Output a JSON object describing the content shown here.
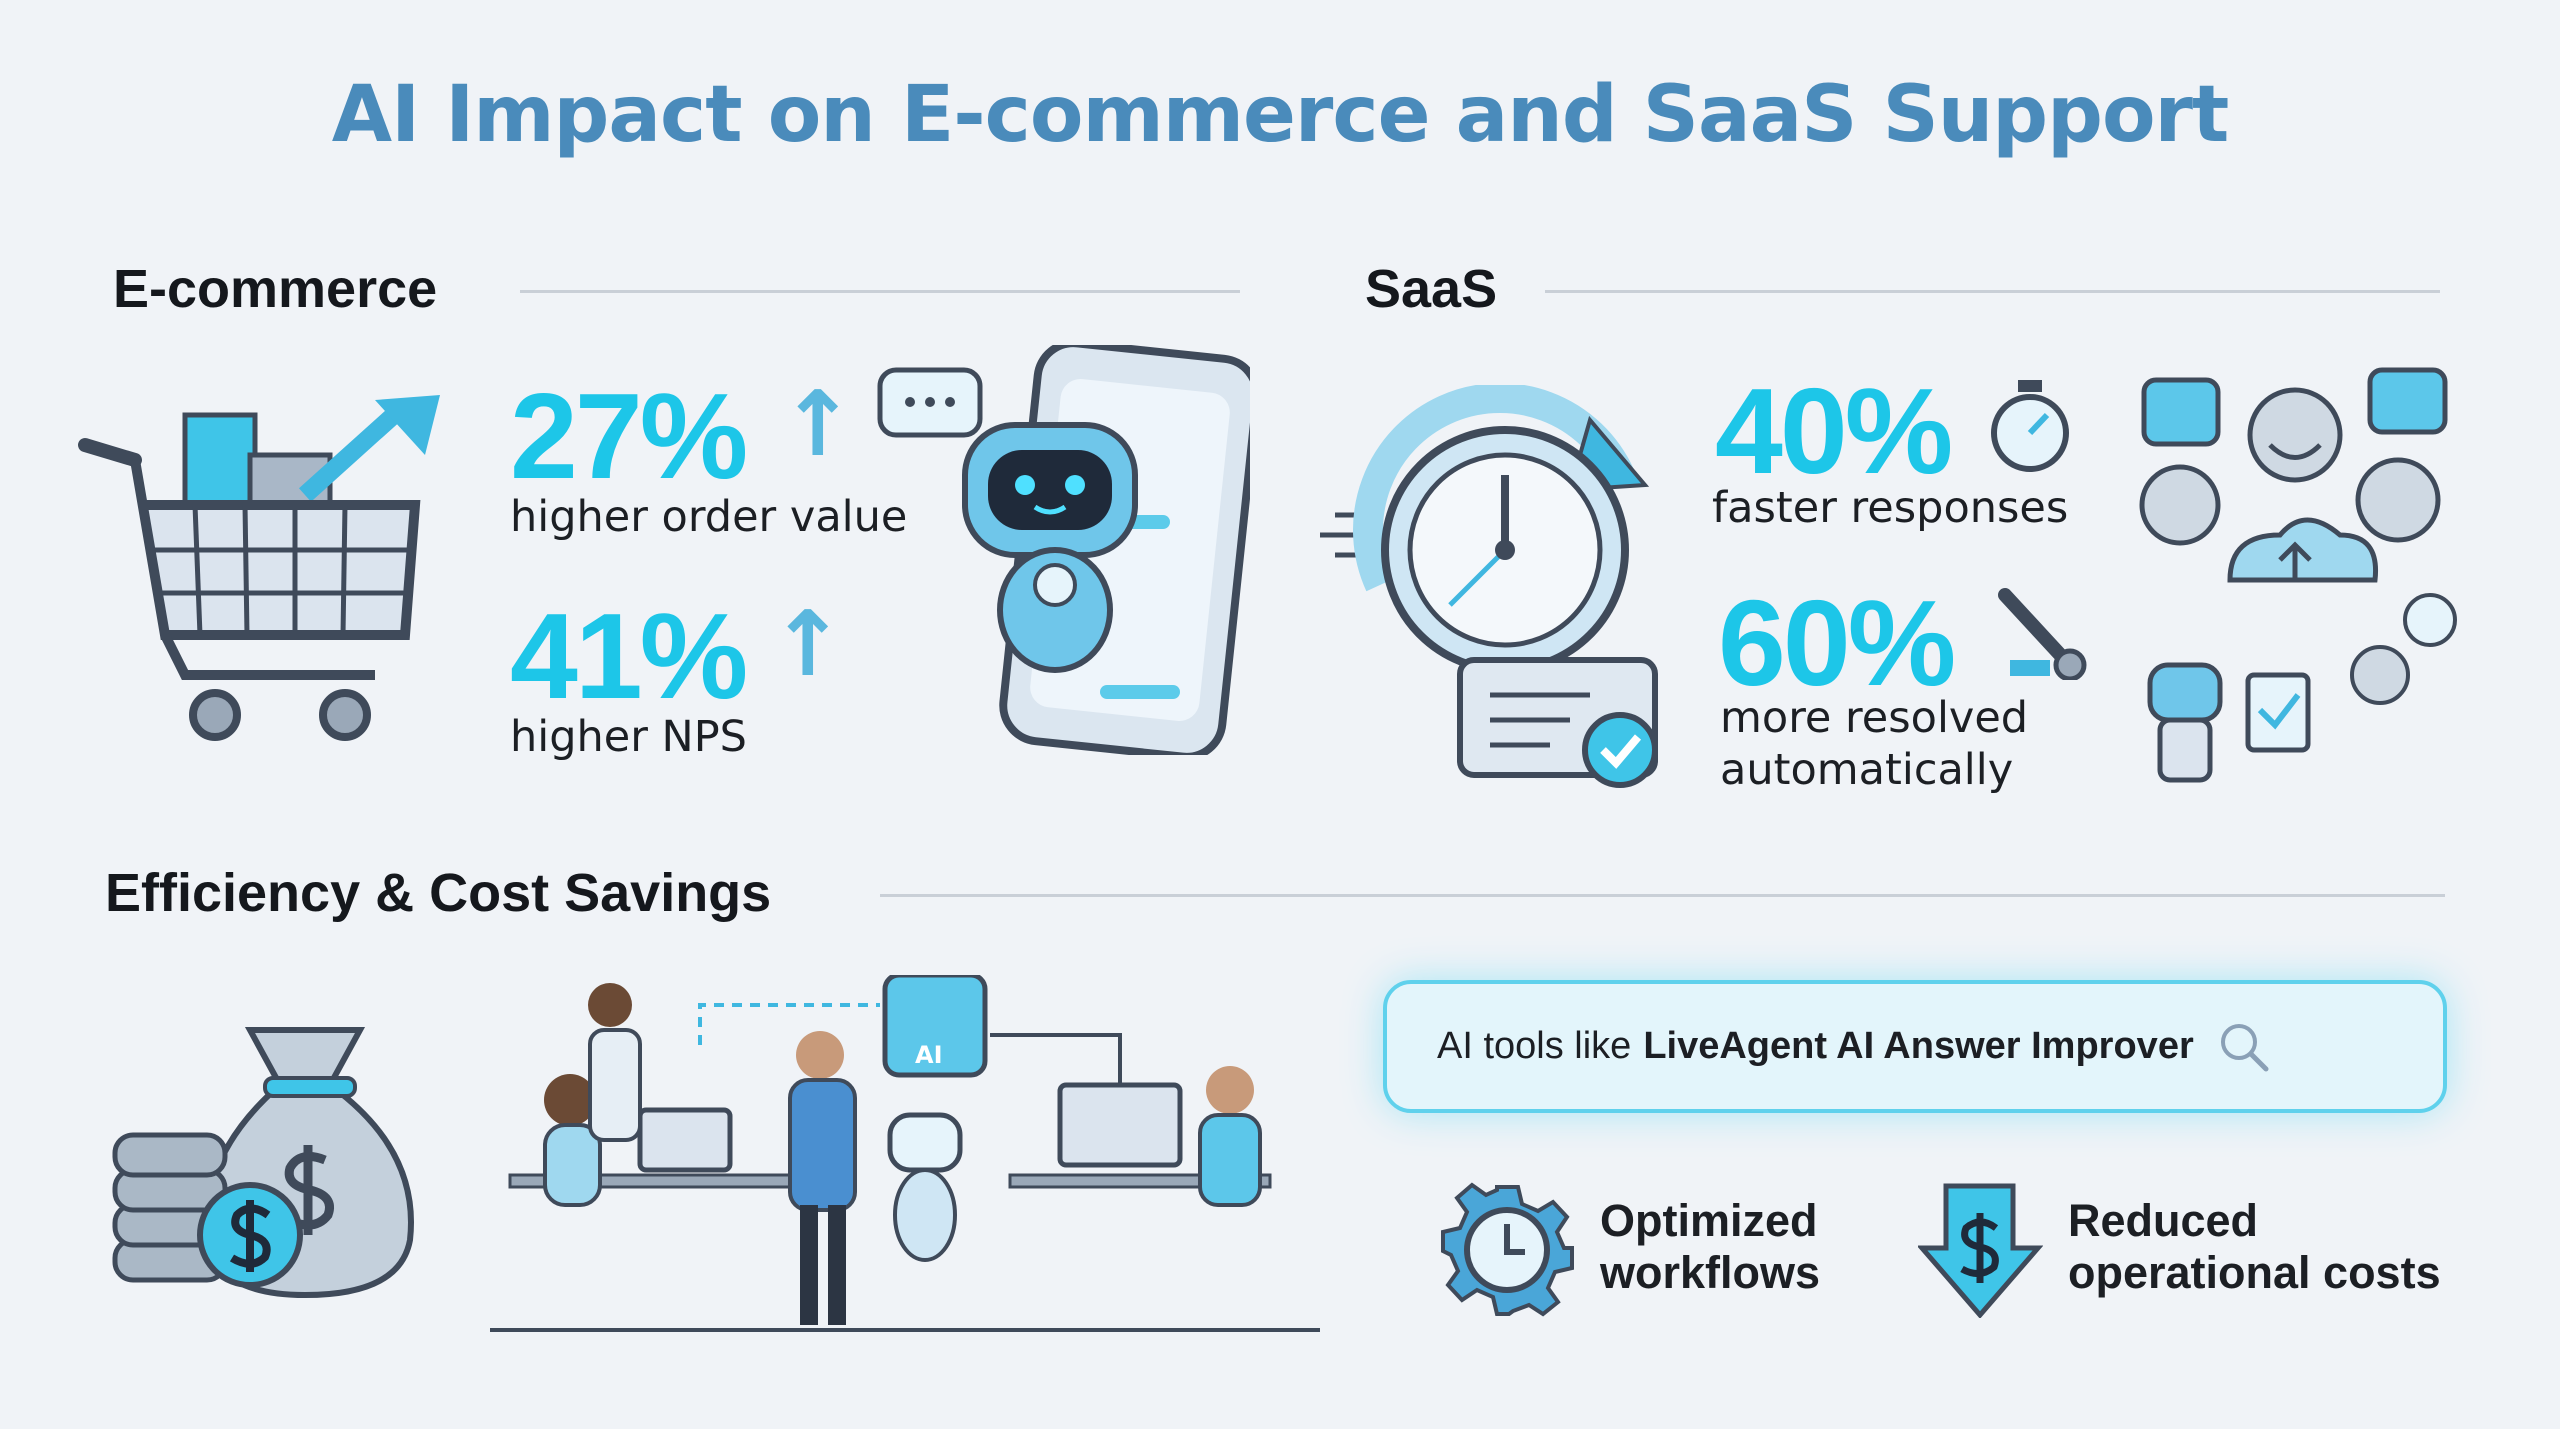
{
  "title": "AI Impact on E-commerce and SaaS Support",
  "ecommerce": {
    "heading": "E-commerce",
    "stats": [
      {
        "value": "27%",
        "label": "higher order value",
        "icon": "arrow-up-icon"
      },
      {
        "value": "41%",
        "label": "higher NPS",
        "icon": "arrow-up-icon"
      }
    ]
  },
  "saas": {
    "heading": "SaaS",
    "stats": [
      {
        "value": "40%",
        "label": "faster responses",
        "icon": "stopwatch-icon"
      },
      {
        "value": "60%",
        "label_line1": "more resolved",
        "label_line2": "automatically",
        "icon": "wrench-icon"
      }
    ]
  },
  "efficiency": {
    "heading": "Efficiency & Cost Savings",
    "ai_badge": "AI",
    "search": {
      "prefix": "AI tools like",
      "product": "LiveAgent AI Answer Improver",
      "icon": "search-icon"
    },
    "features": [
      {
        "line1": "Optimized",
        "line2": "workflows",
        "icon": "gear-clock-icon"
      },
      {
        "line1": "Reduced",
        "line2": "operational costs",
        "icon": "dollar-down-arrow-icon"
      }
    ]
  },
  "colors": {
    "title": "#4a8bbb",
    "accent": "#1dc6e8",
    "text": "#15181d"
  }
}
